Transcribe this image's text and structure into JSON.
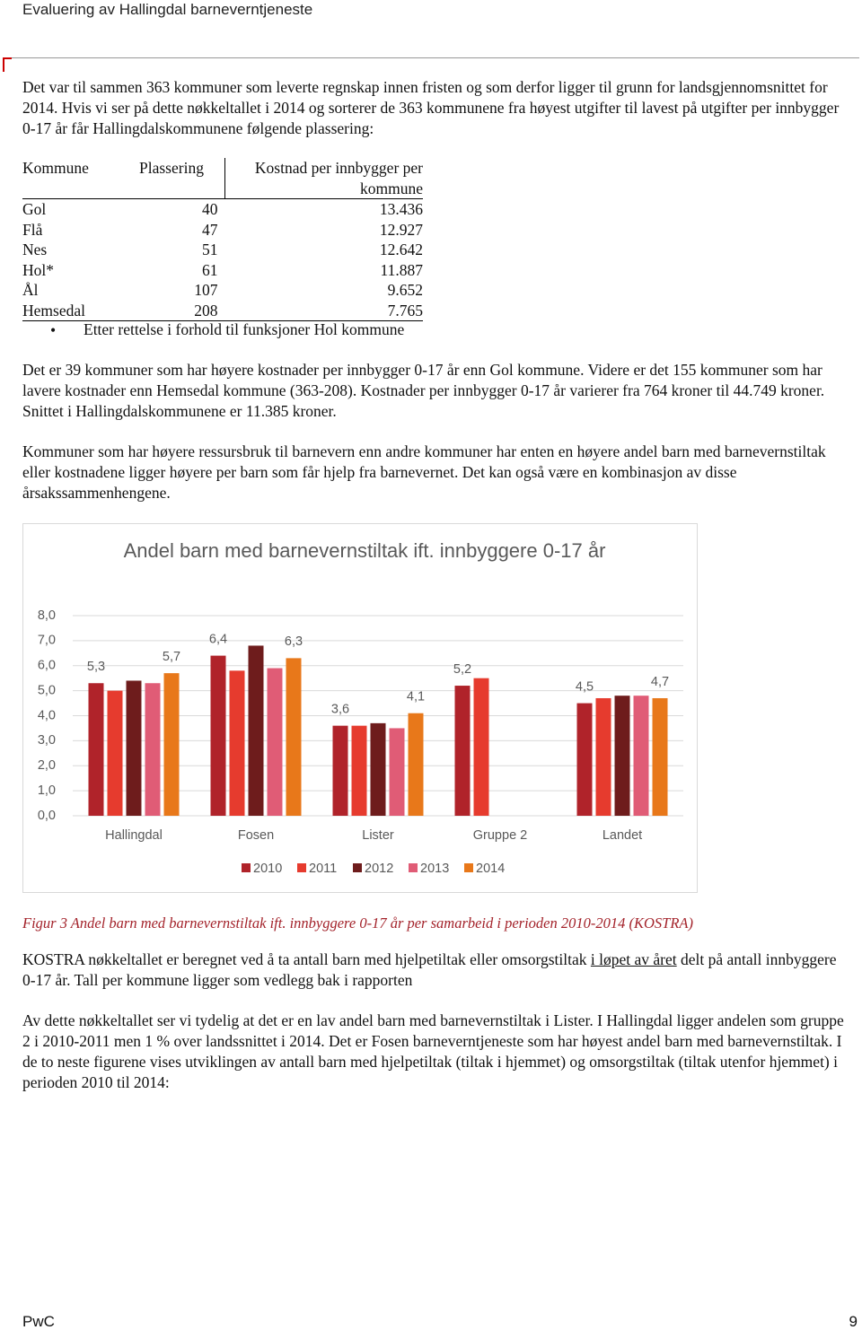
{
  "header": {
    "title": "Evaluering av Hallingdal barneverntjeneste"
  },
  "paragraphs": [
    "Det var til sammen 363 kommuner som leverte regnskap innen fristen og som derfor ligger til grunn for landsgjennomsnittet for 2014. Hvis vi ser på dette nøkkeltallet i 2014 og sorterer de 363 kommunene fra høyest utgifter til lavest på utgifter per innbygger 0-17 år får Hallingdalskommunene følgende plassering:",
    "Det er 39 kommuner som har høyere kostnader per innbygger 0-17 år enn Gol kommune. Videre er det 155 kommuner som har lavere kostnader enn Hemsedal kommune (363-208). Kostnader per innbygger 0-17 år varierer fra 764 kroner til 44.749 kroner. Snittet i Hallingdalskommunene er 11.385 kroner.",
    "Kommuner som har høyere ressursbruk til barnevern enn andre kommuner har enten en høyere andel barn med barnevernstiltak eller kostnadene ligger høyere per barn som får hjelp fra barnevernet. Det kan også være en kombinasjon av disse årsakssammenhengene."
  ],
  "table": {
    "header": [
      "Kommune",
      "Plassering",
      "Kostnad per innbygger per kommune"
    ],
    "rows": [
      [
        "Gol",
        "40",
        "13.436"
      ],
      [
        "Flå",
        "47",
        "12.927"
      ],
      [
        "Nes",
        "51",
        "12.642"
      ],
      [
        "Hol*",
        "61",
        "11.887"
      ],
      [
        "Ål",
        "107",
        "9.652"
      ],
      [
        "Hemsedal",
        "208",
        "7.765"
      ]
    ],
    "note": "Etter rettelse i forhold til funksjoner Hol kommune"
  },
  "chart_data": {
    "type": "bar",
    "title": "Andel barn med barnevernstiltak ift. innbyggere 0-17 år",
    "categories": [
      "Hallingdal",
      "Fosen",
      "Lister",
      "Gruppe 2",
      "Landet"
    ],
    "series": [
      {
        "name": "2010",
        "color": "#b0232a",
        "values": [
          5.3,
          6.4,
          3.6,
          5.2,
          4.5
        ],
        "value_labels": [
          "5,3",
          "6,4",
          "3,6",
          "5,2",
          "4,5"
        ]
      },
      {
        "name": "2011",
        "color": "#e63b2e",
        "values": [
          5.0,
          5.8,
          3.6,
          5.5,
          4.7
        ],
        "value_labels": [
          null,
          null,
          null,
          null,
          null
        ]
      },
      {
        "name": "2012",
        "color": "#6e1c1c",
        "values": [
          5.4,
          6.8,
          3.7,
          null,
          4.8
        ],
        "value_labels": [
          null,
          null,
          null,
          null,
          null
        ]
      },
      {
        "name": "2013",
        "color": "#e05c76",
        "values": [
          5.3,
          5.9,
          3.5,
          null,
          4.8
        ],
        "value_labels": [
          null,
          null,
          null,
          null,
          null
        ]
      },
      {
        "name": "2014",
        "color": "#e8781a",
        "values": [
          5.7,
          6.3,
          4.1,
          null,
          4.7
        ],
        "value_labels": [
          "5,7",
          "6,3",
          "4,1",
          null,
          "4,7"
        ]
      }
    ],
    "ylim": [
      0,
      8
    ],
    "yticks": [
      {
        "value": 0,
        "label": "0,0"
      },
      {
        "value": 1,
        "label": "1,0"
      },
      {
        "value": 2,
        "label": "2,0"
      },
      {
        "value": 3,
        "label": "3,0"
      },
      {
        "value": 4,
        "label": "4,0"
      },
      {
        "value": 5,
        "label": "5,0"
      },
      {
        "value": 6,
        "label": "6,0"
      },
      {
        "value": 7,
        "label": "7,0"
      },
      {
        "value": 8,
        "label": "8,0"
      }
    ],
    "grid": true,
    "legend": "bottom"
  },
  "caption": "Figur 3 Andel barn med barnevernstiltak ift. innbyggere 0-17 år  per samarbeid i perioden 2010-2014 (KOSTRA)",
  "kostra_paragraph": [
    "KOSTRA nøkkeltallet er beregnet ved å ta antall barn med hjelpetiltak eller omsorgstiltak ",
    "i løpet av året",
    " delt på antall innbyggere 0-17 år. Tall per kommune ligger som vedlegg bak i rapporten"
  ],
  "final_paragraph": "Av dette nøkkeltallet ser vi tydelig at det er en lav andel barn med barnevernstiltak i Lister. I Hallingdal ligger andelen som gruppe 2 i 2010-2011 men 1 % over landssnittet i 2014. Det er Fosen barneverntjeneste som har høyest andel barn med barnevernstiltak. I de to neste figurene vises utviklingen av antall barn med hjelpetiltak (tiltak i hjemmet) og omsorgstiltak (tiltak utenfor hjemmet) i perioden 2010 til 2014:",
  "footer": {
    "left": "PwC",
    "page": "9"
  }
}
